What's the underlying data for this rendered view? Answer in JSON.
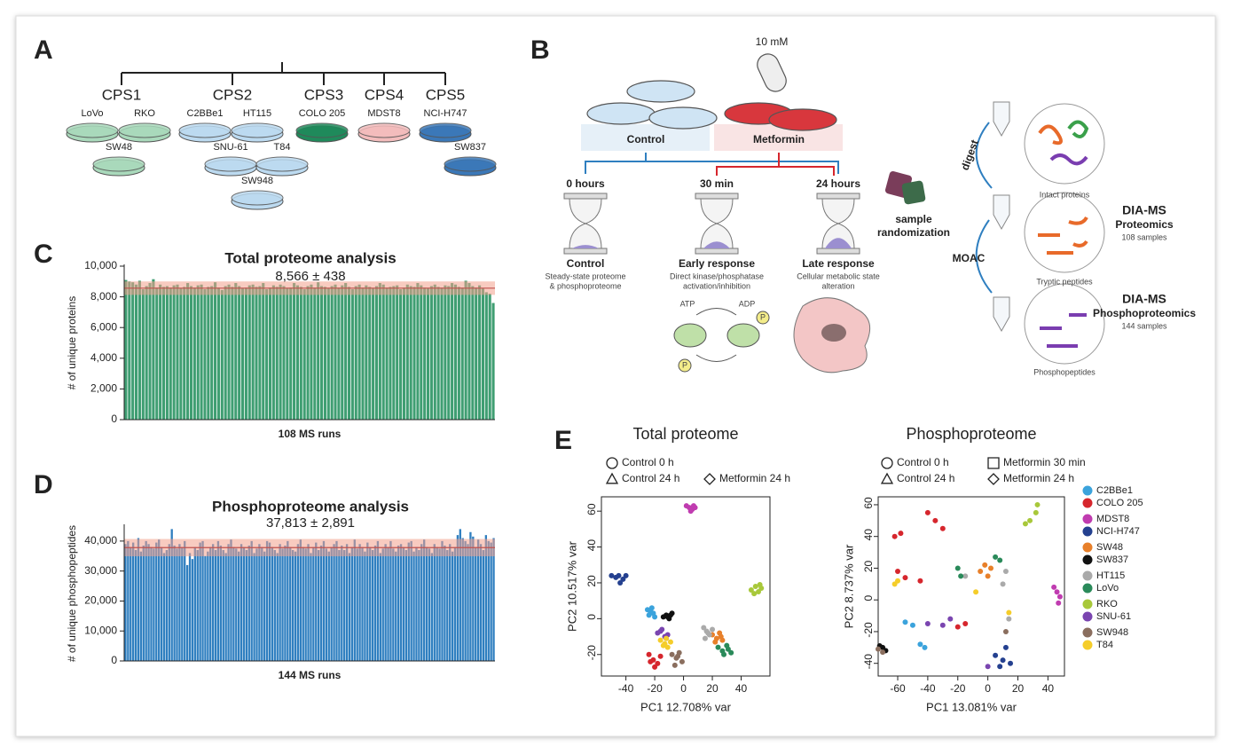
{
  "panel_a": {
    "label": "A",
    "groups": [
      {
        "name": "CPS1",
        "lines": [
          "LoVo",
          "RKO",
          "SW48"
        ]
      },
      {
        "name": "CPS2",
        "lines": [
          "C2BBe1",
          "HT115",
          "SNU-61",
          "T84",
          "SW948"
        ]
      },
      {
        "name": "CPS3",
        "lines": [
          "COLO 205"
        ]
      },
      {
        "name": "CPS4",
        "lines": [
          "MDST8"
        ]
      },
      {
        "name": "CPS5",
        "lines": [
          "NCI-H747",
          "SW837"
        ]
      }
    ]
  },
  "panel_b": {
    "label": "B",
    "dose": "10 mM",
    "control": "Control",
    "metformin": "Metformin",
    "timepoints": [
      {
        "time": "0 hours",
        "name": "Control",
        "desc": [
          "Steady-state proteome",
          "& phosphoproteome"
        ]
      },
      {
        "time": "30 min",
        "name": "Early response",
        "desc": [
          "Direct kinase/phosphatase",
          "activation/inhibition"
        ]
      },
      {
        "time": "24 hours",
        "name": "Late response",
        "desc": [
          "Cellular metabolic state",
          "alteration"
        ]
      }
    ],
    "atp": "ATP",
    "adp": "ADP",
    "p": "P",
    "randomization": [
      "sample",
      "randomization"
    ],
    "digest": "digest",
    "moac": "MOAC",
    "stages": [
      "Intact proteins",
      "Tryptic peptides",
      "Phosphopeptides"
    ],
    "outputs": [
      {
        "method": "DIA-MS",
        "name": "Proteomics",
        "samples": "108 samples"
      },
      {
        "method": "DIA-MS",
        "name": "Phosphoproteomics",
        "samples": "144 samples"
      }
    ]
  },
  "panel_c": {
    "label": "C",
    "chart": {
      "type": "bar",
      "title": "Total proteome analysis",
      "subtitle": "8,566 ± 438",
      "ylabel": "# of unique proteins",
      "xlabel": "108 MS runs",
      "color": "#3f9e72",
      "subtitle_color": "#3f9e72",
      "band": {
        "mean": 8566,
        "sd": 438
      },
      "band_color": "#f2a08c",
      "ylim": [
        0,
        10000
      ],
      "yticks": [
        0,
        {
          "value": 2000,
          "label": "2,000"
        },
        {
          "value": 4000,
          "label": "4,000"
        },
        {
          "value": 6000,
          "label": "6,000"
        },
        {
          "value": 8000,
          "label": "8,000"
        },
        {
          "value": 10000,
          "label": "10,000"
        }
      ],
      "values": [
        9100,
        9000,
        8950,
        8800,
        9050,
        8500,
        8700,
        8900,
        9150,
        8600,
        8800,
        8650,
        8700,
        8600,
        8750,
        8800,
        8550,
        8650,
        8900,
        8700,
        8600,
        8750,
        8800,
        8500,
        8650,
        8700,
        8950,
        8600,
        8450,
        8700,
        8800,
        8650,
        8900,
        8700,
        8550,
        8600,
        8750,
        8800,
        8650,
        8700,
        8900,
        8500,
        8600,
        8750,
        8650,
        8800,
        8700,
        8550,
        8600,
        8900,
        8750,
        8650,
        8500,
        8700,
        8800,
        8600,
        8950,
        8700,
        8650,
        8550,
        8700,
        8800,
        8600,
        8750,
        8900,
        8650,
        8500,
        8700,
        8800,
        8600,
        8750,
        8650,
        8550,
        8700,
        8900,
        8800,
        8600,
        8650,
        8700,
        8750,
        8500,
        8600,
        8800,
        8700,
        8650,
        8900,
        8750,
        8600,
        8550,
        8700,
        8800,
        8650,
        8600,
        8750,
        8700,
        8900,
        8800,
        8650,
        8600,
        9050,
        8900,
        8700,
        8600,
        8750,
        8550,
        8300,
        8200,
        7600
      ]
    }
  },
  "panel_d": {
    "label": "D",
    "chart": {
      "type": "bar",
      "title": "Phosphoproteome analysis",
      "subtitle": "37,813 ± 2,891",
      "ylabel": "# of unique phosphopeptides",
      "xlabel": "144 MS runs",
      "color": "#2f7fc0",
      "subtitle_color": "#2f7fc0",
      "band": {
        "mean": 37813,
        "sd": 2891
      },
      "band_color": "#f2a08c",
      "ylim": [
        0,
        45000
      ],
      "yticks": [
        0,
        {
          "value": 10000,
          "label": "10,000"
        },
        {
          "value": 20000,
          "label": "20,000"
        },
        {
          "value": 30000,
          "label": "30,000"
        },
        {
          "value": 40000,
          "label": "40,000"
        }
      ],
      "values": [
        39000,
        40000,
        38000,
        39500,
        37000,
        41000,
        36500,
        38500,
        40000,
        39000,
        38000,
        37500,
        39500,
        40500,
        38000,
        36000,
        37000,
        39000,
        44000,
        38500,
        37500,
        39000,
        38000,
        40000,
        32000,
        36000,
        34000,
        38000,
        37000,
        39500,
        40000,
        35000,
        36500,
        38000,
        39000,
        37000,
        40000,
        38500,
        37000,
        36000,
        39000,
        40500,
        38000,
        37500,
        36500,
        39000,
        38000,
        37000,
        38500,
        40000,
        36000,
        37500,
        39000,
        38000,
        36500,
        40000,
        39500,
        38000,
        37000,
        36000,
        39000,
        37500,
        38500,
        40000,
        38000,
        37000,
        36500,
        39000,
        40500,
        38000,
        37500,
        39000,
        36000,
        38000,
        39500,
        37000,
        38500,
        40000,
        37500,
        36500,
        38000,
        39000,
        40000,
        37000,
        38500,
        37000,
        39000,
        36000,
        38000,
        40500,
        37500,
        39000,
        38000,
        36500,
        39500,
        38000,
        37000,
        38500,
        40000,
        36000,
        37500,
        39000,
        38000,
        40000,
        37500,
        36500,
        38500,
        39000,
        38000,
        37000,
        39500,
        40000,
        36500,
        38000,
        37000,
        39000,
        40500,
        38000,
        37500,
        36000,
        39000,
        38000,
        37500,
        40000,
        38500,
        37000,
        39000,
        36500,
        38000,
        42000,
        44000,
        41000,
        40000,
        39000,
        43000,
        41500,
        38000,
        40500,
        39000,
        37000,
        42000,
        40000,
        39500,
        41000
      ]
    }
  },
  "panel_e": {
    "label": "E",
    "legend": [
      {
        "name": "C2BBe1",
        "color": "#3ba3dc"
      },
      {
        "name": "COLO 205",
        "color": "#d6262d"
      },
      {
        "name": "MDST8",
        "color": "#c03cb0"
      },
      {
        "name": "NCI-H747",
        "color": "#24408f"
      },
      {
        "name": "SW48",
        "color": "#e8802a"
      },
      {
        "name": "SW837",
        "color": "#111111"
      },
      {
        "name": "HT115",
        "color": "#aaaaaa"
      },
      {
        "name": "LoVo",
        "color": "#2a8a5a"
      },
      {
        "name": "RKO",
        "color": "#a8c83a"
      },
      {
        "name": "SNU-61",
        "color": "#7a45b0"
      },
      {
        "name": "SW948",
        "color": "#8a6e5e"
      },
      {
        "name": "T84",
        "color": "#f5cd2a"
      }
    ],
    "charts": [
      {
        "type": "scatter",
        "title": "Total proteome",
        "xlabel": "PC1 12.708% var",
        "ylabel": "PC2 10.517% var",
        "conditions": [
          "Control 0 h",
          "Control 24 h",
          "Metformin 24 h"
        ],
        "xlim": [
          -57,
          60
        ],
        "ylim": [
          -32,
          68
        ],
        "xticks": [
          -40,
          -20,
          0,
          20,
          40
        ],
        "yticks": [
          -20,
          0,
          20,
          40,
          60
        ],
        "series": [
          {
            "x": [
              -25,
              -23,
              -21,
              -20,
              -24,
              -22
            ],
            "y": [
              5,
              4,
              3,
              1,
              2,
              6
            ]
          },
          {
            "x": [
              -24,
              -21,
              -18,
              -16,
              -20,
              -23
            ],
            "y": [
              -20,
              -23,
              -25,
              -21,
              -27,
              -24
            ]
          },
          {
            "x": [
              2,
              4,
              6,
              8,
              5,
              7
            ],
            "y": [
              63,
              62,
              61,
              62,
              60,
              63
            ]
          },
          {
            "x": [
              -50,
              -47,
              -45,
              -42,
              -44,
              -40
            ],
            "y": [
              24,
              23,
              24,
              22,
              20,
              24
            ]
          },
          {
            "x": [
              20,
              23,
              25,
              27,
              22,
              26
            ],
            "y": [
              -9,
              -11,
              -8,
              -12,
              -13,
              -10
            ]
          },
          {
            "x": [
              -14,
              -12,
              -10,
              -8,
              -11,
              -9
            ],
            "y": [
              1,
              2,
              0,
              3,
              1,
              2
            ]
          },
          {
            "x": [
              14,
              16,
              18,
              20,
              17,
              15
            ],
            "y": [
              -5,
              -7,
              -9,
              -6,
              -8,
              -11
            ]
          },
          {
            "x": [
              24,
              27,
              30,
              33,
              28,
              31
            ],
            "y": [
              -16,
              -18,
              -15,
              -19,
              -20,
              -17
            ]
          },
          {
            "x": [
              47,
              50,
              52,
              54,
              49,
              53
            ],
            "y": [
              16,
              18,
              15,
              17,
              14,
              19
            ]
          },
          {
            "x": [
              -18,
              -15,
              -13,
              -11,
              -16,
              -12
            ],
            "y": [
              -8,
              -6,
              -10,
              -9,
              -7,
              -11
            ]
          },
          {
            "x": [
              -8,
              -5,
              -3,
              -1,
              -6,
              -4
            ],
            "y": [
              -20,
              -22,
              -19,
              -24,
              -26,
              -21
            ]
          },
          {
            "x": [
              -16,
              -13,
              -11,
              -9,
              -14,
              -12
            ],
            "y": [
              -12,
              -14,
              -16,
              -13,
              -15,
              -11
            ]
          }
        ]
      },
      {
        "type": "scatter",
        "title": "Phosphoproteome",
        "xlabel": "PC1 13.081% var",
        "ylabel": "PC2 8.737% var",
        "conditions": [
          "Control 0 h",
          "Metformin 30 min",
          "Control 24 h",
          "Metformin 24 h"
        ],
        "xlim": [
          -73,
          51
        ],
        "ylim": [
          -48,
          65
        ],
        "xticks": [
          -60,
          -40,
          -20,
          0,
          20,
          40
        ],
        "yticks": [
          -40,
          -20,
          0,
          20,
          40,
          60
        ],
        "series": [
          {
            "x": [
              -45,
              -42,
              -50,
              -55
            ],
            "y": [
              -28,
              -30,
              -16,
              -14
            ]
          },
          {
            "x": [
              -62,
              -58,
              -40,
              -35,
              -30,
              -60,
              -55,
              -45,
              -20,
              -15
            ],
            "y": [
              40,
              42,
              55,
              50,
              45,
              18,
              14,
              12,
              -17,
              -15
            ]
          },
          {
            "x": [
              44,
              46,
              48,
              47
            ],
            "y": [
              8,
              5,
              2,
              -2
            ]
          },
          {
            "x": [
              5,
              10,
              15,
              12,
              8
            ],
            "y": [
              -35,
              -38,
              -40,
              -30,
              -42
            ]
          },
          {
            "x": [
              -5,
              0,
              2,
              -2
            ],
            "y": [
              18,
              15,
              20,
              22
            ]
          },
          {
            "x": [
              -70,
              -68,
              -72
            ],
            "y": [
              -30,
              -32,
              -29
            ]
          },
          {
            "x": [
              10,
              12,
              14,
              -15
            ],
            "y": [
              10,
              18,
              -12,
              15
            ]
          },
          {
            "x": [
              -20,
              -18,
              5,
              8
            ],
            "y": [
              20,
              15,
              27,
              25
            ]
          },
          {
            "x": [
              25,
              28,
              32,
              33
            ],
            "y": [
              48,
              50,
              55,
              60
            ]
          },
          {
            "x": [
              -40,
              -30,
              -25,
              0
            ],
            "y": [
              -15,
              -16,
              -12,
              -42
            ]
          },
          {
            "x": [
              -73,
              -70,
              12
            ],
            "y": [
              -31,
              -33,
              -20
            ]
          },
          {
            "x": [
              -62,
              -60,
              -8,
              14
            ],
            "y": [
              10,
              12,
              5,
              -8
            ]
          }
        ]
      }
    ]
  }
}
